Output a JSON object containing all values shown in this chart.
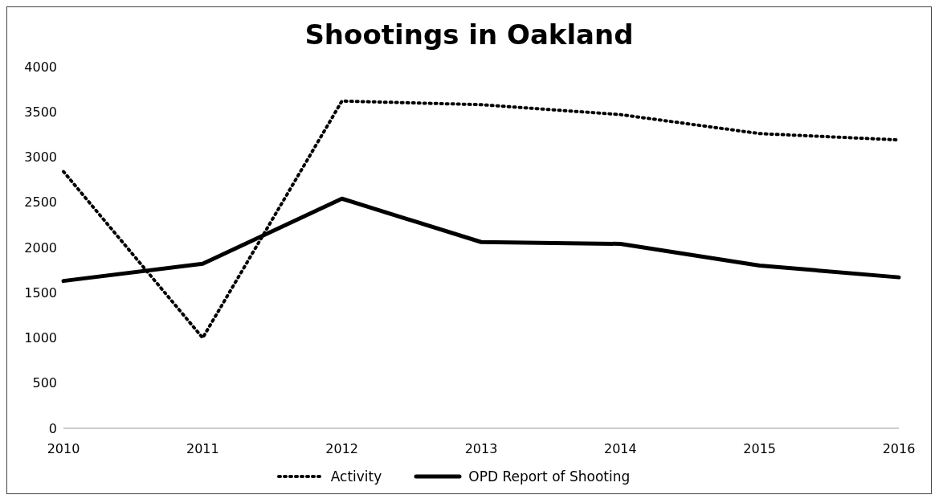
{
  "chart_data": {
    "type": "line",
    "title": "Shootings in Oakland",
    "categories": [
      "2010",
      "2011",
      "2012",
      "2013",
      "2014",
      "2015",
      "2016"
    ],
    "series": [
      {
        "name": "Activity",
        "color": "#000000",
        "line_style": "dotted",
        "values": [
          2840,
          1000,
          3620,
          3580,
          3470,
          3260,
          3190
        ]
      },
      {
        "name": "OPD Report of Shooting",
        "color": "#000000",
        "line_style": "solid",
        "values": [
          1630,
          1820,
          2540,
          2060,
          2040,
          1800,
          1670
        ]
      }
    ],
    "ylim": [
      0,
      4000
    ],
    "yticks": [
      0,
      500,
      1000,
      1500,
      2000,
      2500,
      3000,
      3500,
      4000
    ],
    "grid": false,
    "legend": "bottom",
    "marker": "none"
  }
}
